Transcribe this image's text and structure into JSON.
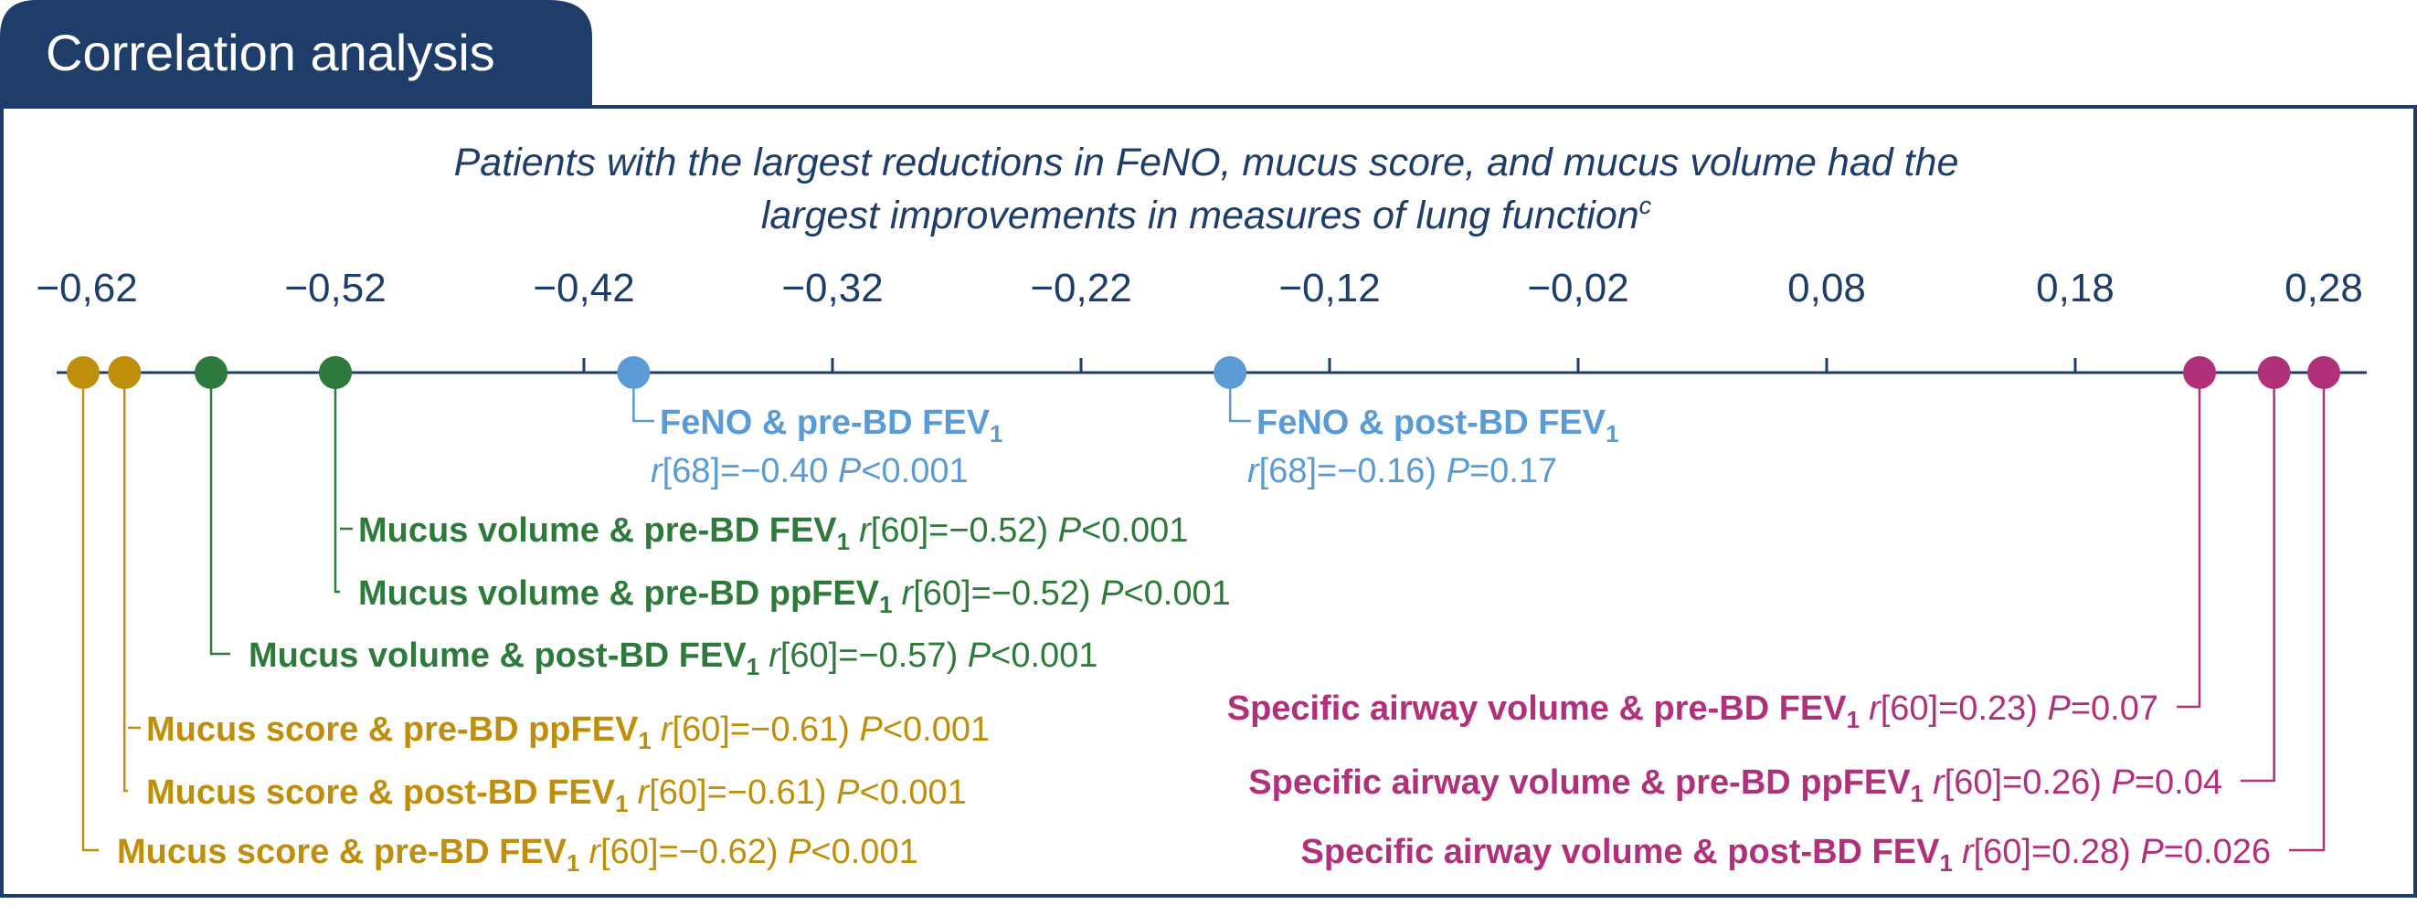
{
  "header": {
    "tab_title": "Correlation analysis"
  },
  "subtitle": {
    "line1": "Patients with the largest reductions in FeNO, mucus score, and mucus volume had the",
    "line2": "largest improvements in measures of lung function",
    "line2_sup": "c"
  },
  "colors": {
    "navy": "#1f3d6b",
    "gold": "#bf8f0c",
    "green": "#2e7a3c",
    "blue": "#5b9bd5",
    "magenta": "#b0307a"
  },
  "chart_data": {
    "type": "scatter",
    "axis": {
      "ticks": [
        -0.62,
        -0.52,
        -0.42,
        -0.32,
        -0.22,
        -0.12,
        -0.02,
        0.08,
        0.18,
        0.28
      ],
      "tick_labels": [
        "−0,62",
        "−0,52",
        "−0,42",
        "−0,32",
        "−0,22",
        "−0,12",
        "−0,02",
        "0,08",
        "0,18",
        "0,28"
      ],
      "range": [
        -0.62,
        0.28
      ]
    },
    "groups": [
      {
        "key": "gold",
        "color": "#bf8f0c"
      },
      {
        "key": "green",
        "color": "#2e7a3c"
      },
      {
        "key": "blue",
        "color": "#5b9bd5"
      },
      {
        "key": "magenta",
        "color": "#b0307a"
      }
    ],
    "points": [
      {
        "group": "gold",
        "value": -0.62,
        "label_bold": "Mucus score & pre-BD FEV",
        "sub": "1",
        "stat_r": "r",
        "stat_mid": "[60]=−0.62) ",
        "stat_p": "P",
        "stat_end": "<0.001"
      },
      {
        "group": "gold",
        "value": -0.61,
        "label_bold": "Mucus score & post-BD FEV",
        "sub": "1",
        "stat_r": "r",
        "stat_mid": "[60]=−0.61) ",
        "stat_p": "P",
        "stat_end": "<0.001"
      },
      {
        "group": "gold",
        "value": -0.61,
        "label_bold": "Mucus score & pre-BD ppFEV",
        "sub": "1",
        "stat_r": "r",
        "stat_mid": "[60]=−0.61) ",
        "stat_p": "P",
        "stat_end": "<0.001"
      },
      {
        "group": "green",
        "value": -0.57,
        "label_bold": "Mucus volume & post-BD FEV",
        "sub": "1",
        "stat_r": "r",
        "stat_mid": "[60]=−0.57) ",
        "stat_p": "P",
        "stat_end": "<0.001"
      },
      {
        "group": "green",
        "value": -0.52,
        "label_bold": "Mucus volume & pre-BD ppFEV",
        "sub": "1",
        "stat_r": "r",
        "stat_mid": "[60]=−0.52) ",
        "stat_p": "P",
        "stat_end": "<0.001"
      },
      {
        "group": "green",
        "value": -0.52,
        "label_bold": "Mucus volume & pre-BD FEV",
        "sub": "1",
        "stat_r": "r",
        "stat_mid": "[60]=−0.52) ",
        "stat_p": "P",
        "stat_end": "<0.001"
      },
      {
        "group": "blue",
        "value": -0.4,
        "label_bold": "FeNO & pre-BD FEV",
        "sub": "1",
        "stat_r": "r",
        "stat_mid": "[68]=−0.40 ",
        "stat_p": "P",
        "stat_end": "<0.001"
      },
      {
        "group": "blue",
        "value": -0.16,
        "label_bold": "FeNO & post-BD FEV",
        "sub": "1",
        "stat_r": "r",
        "stat_mid": "[68]=−0.16) ",
        "stat_p": "P",
        "stat_end": "=0.17"
      },
      {
        "group": "magenta",
        "value": 0.23,
        "label_bold": "Specific airway volume & pre-BD FEV",
        "sub": "1",
        "stat_r": "r",
        "stat_mid": "[60]=0.23) ",
        "stat_p": "P",
        "stat_end": "=0.07"
      },
      {
        "group": "magenta",
        "value": 0.26,
        "label_bold": "Specific airway volume & pre-BD ppFEV",
        "sub": "1",
        "stat_r": "r",
        "stat_mid": "[60]=0.26) ",
        "stat_p": "P",
        "stat_end": "=0.04"
      },
      {
        "group": "magenta",
        "value": 0.28,
        "label_bold": "Specific airway volume & post-BD FEV",
        "sub": "1",
        "stat_r": "r",
        "stat_mid": "[60]=0.28) ",
        "stat_p": "P",
        "stat_end": "=0.026"
      }
    ]
  }
}
